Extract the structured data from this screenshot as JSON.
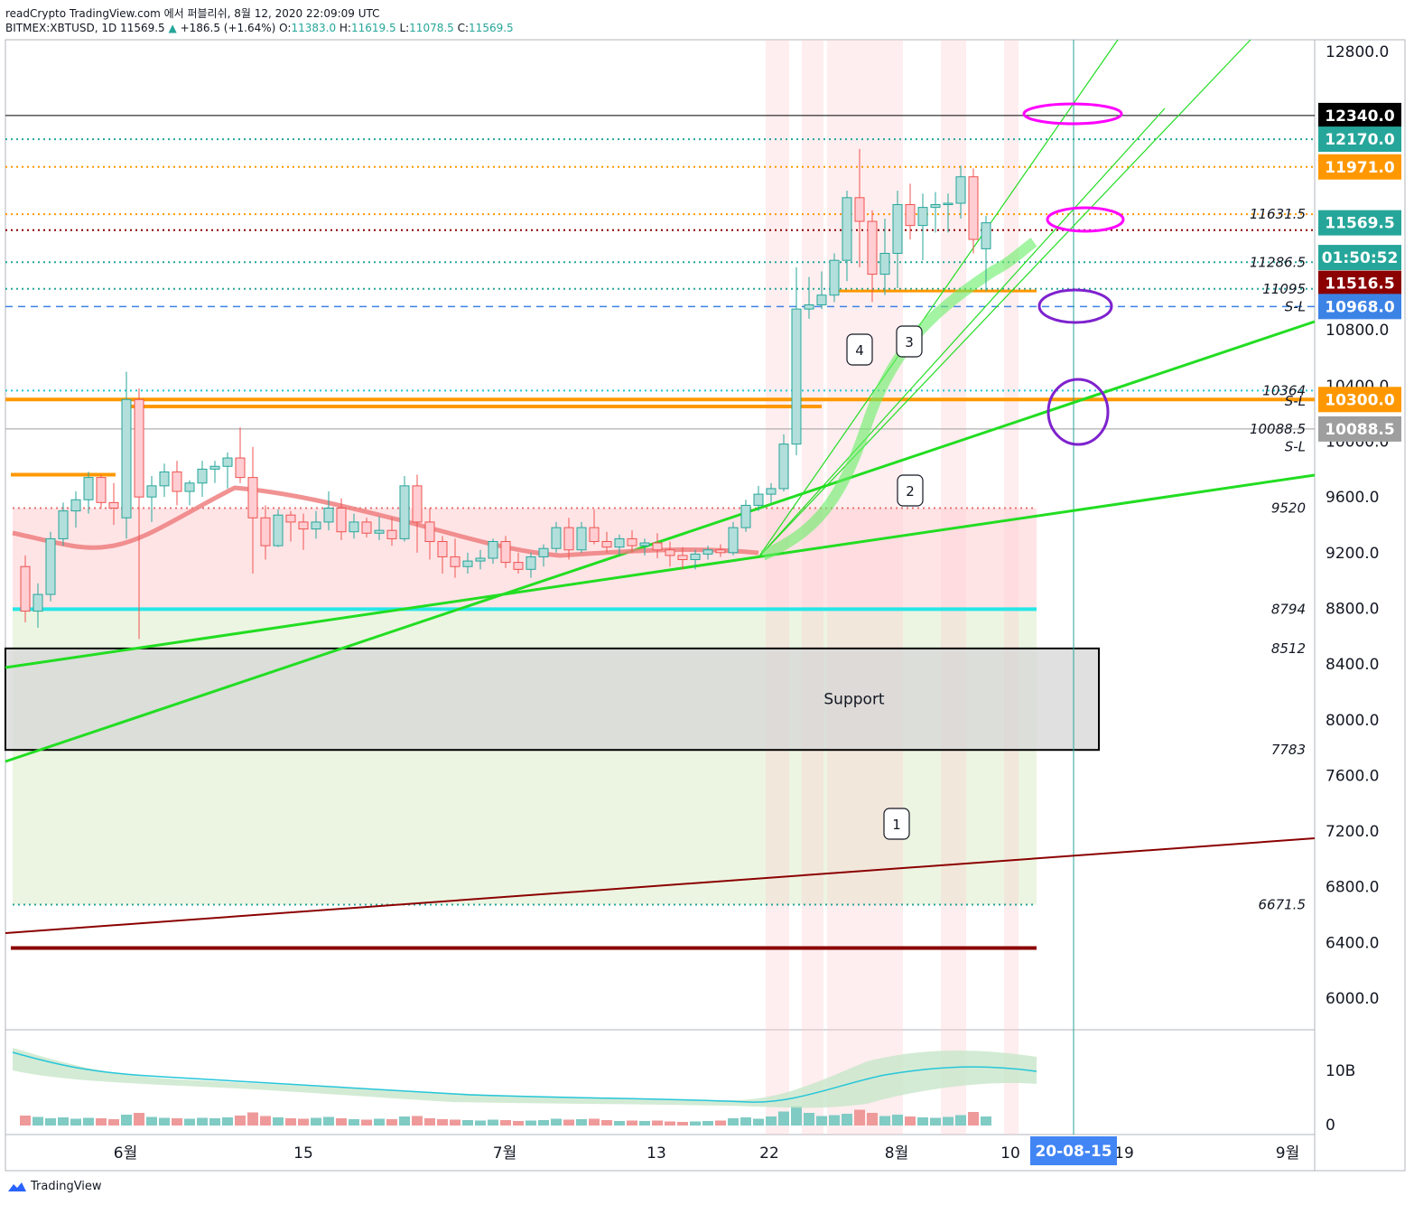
{
  "header": {
    "line1": "readCrypto TradingView.com 에서 퍼블리쉬, 8월 12, 2020 22:09:09 UTC",
    "symbol": "BITMEX:XBTUSD, 1D",
    "last": "11569.5",
    "change": "+186.5 (+1.64%)",
    "o_label": "O:",
    "o": "11383.0",
    "h_label": "H:",
    "h": "11619.5",
    "l_label": "L:",
    "l": "11078.5",
    "c_label": "C:",
    "c": "11569.5"
  },
  "brand": "TradingView",
  "chart_data": {
    "type": "candlestick",
    "title": "BITMEX:XBTUSD, 1D",
    "ylim": [
      5800,
      12900
    ],
    "y_ticks": [
      {
        "v": 12800,
        "label": "12800.0"
      },
      {
        "v": 10800,
        "label": "10800.0"
      },
      {
        "v": 10400,
        "label": "10400.0"
      },
      {
        "v": 10000,
        "label": "10000.0"
      },
      {
        "v": 9600,
        "label": "9600.0"
      },
      {
        "v": 9200,
        "label": "9200.0"
      },
      {
        "v": 8800,
        "label": "8800.0"
      },
      {
        "v": 8400,
        "label": "8400.0"
      },
      {
        "v": 8000,
        "label": "8000.0"
      },
      {
        "v": 7600,
        "label": "7600.0"
      },
      {
        "v": 7200,
        "label": "7200.0"
      },
      {
        "v": 6800,
        "label": "6800.0"
      },
      {
        "v": 6400,
        "label": "6400.0"
      },
      {
        "v": 6000,
        "label": "6000.0"
      }
    ],
    "x_labels": [
      {
        "i": 8,
        "label": "6월"
      },
      {
        "i": 22,
        "label": "15"
      },
      {
        "i": 38,
        "label": "7월"
      },
      {
        "i": 50,
        "label": "13"
      },
      {
        "i": 59,
        "label": "22"
      },
      {
        "i": 69,
        "label": "8월"
      },
      {
        "i": 78,
        "label": "10"
      },
      {
        "i": 87,
        "label": "19"
      },
      {
        "i": 101,
        "label": "9월"
      }
    ],
    "date_badge": {
      "i": 84,
      "label": "20-08-15"
    },
    "price_badges": [
      {
        "v": 12340,
        "label": "12340.0",
        "bg": "#000000"
      },
      {
        "v": 12170,
        "label": "12170.0",
        "bg": "#26a69a"
      },
      {
        "v": 11971,
        "label": "11971.0",
        "bg": "#ff9800"
      },
      {
        "v": 11569.5,
        "label": "11569.5",
        "bg": "#26a69a"
      },
      {
        "v": 11320,
        "label": "01:50:52",
        "bg": "#26a69a"
      },
      {
        "v": 11135,
        "label": "11516.5",
        "bg": "#8b0000"
      },
      {
        "v": 10968,
        "label": "10968.0",
        "bg": "#3c83e6"
      },
      {
        "v": 10300,
        "label": "10300.0",
        "bg": "#ff9800"
      },
      {
        "v": 10088.5,
        "label": "10088.5",
        "bg": "#9e9e9e"
      }
    ],
    "level_labels": [
      {
        "v": 11631.5,
        "label": "11631.5"
      },
      {
        "v": 11286.5,
        "label": "11286.5"
      },
      {
        "v": 11095,
        "label": "11095"
      },
      {
        "v": 10968,
        "label": "S-L"
      },
      {
        "v": 10364,
        "label": "10364"
      },
      {
        "v": 10290,
        "label": "S-L"
      },
      {
        "v": 10088.5,
        "label": "10088.5"
      },
      {
        "v": 9960,
        "label": "S-L"
      },
      {
        "v": 9520,
        "label": "9520"
      },
      {
        "v": 8794,
        "label": "8794"
      },
      {
        "v": 8512,
        "label": "8512"
      },
      {
        "v": 7783,
        "label": "7783"
      },
      {
        "v": 6671.5,
        "label": "6671.5"
      }
    ],
    "support_label": "Support",
    "callouts": [
      {
        "label": "1",
        "i": 70,
        "v": 6950
      },
      {
        "label": "2",
        "i": 71,
        "v": 9780
      },
      {
        "label": "3",
        "i": 71,
        "v": 10700
      },
      {
        "label": "4",
        "i": 66,
        "v": 10400
      }
    ],
    "indicator_ticks": [
      {
        "v": 10,
        "label": "10B"
      },
      {
        "v": 0,
        "label": "0"
      }
    ],
    "candles": [
      [
        9100,
        9180,
        8700,
        8780
      ],
      [
        8780,
        8980,
        8660,
        8900
      ],
      [
        8900,
        9350,
        8850,
        9300
      ],
      [
        9300,
        9560,
        9250,
        9500
      ],
      [
        9500,
        9640,
        9380,
        9580
      ],
      [
        9580,
        9780,
        9480,
        9740
      ],
      [
        9740,
        9760,
        9520,
        9560
      ],
      [
        9560,
        9700,
        9400,
        9520
      ],
      [
        9450,
        10500,
        9300,
        10300
      ],
      [
        10300,
        10380,
        8580,
        9600
      ],
      [
        9600,
        9750,
        9420,
        9680
      ],
      [
        9680,
        9840,
        9600,
        9780
      ],
      [
        9780,
        9860,
        9540,
        9640
      ],
      [
        9640,
        9720,
        9540,
        9700
      ],
      [
        9700,
        9860,
        9600,
        9800
      ],
      [
        9800,
        9860,
        9700,
        9820
      ],
      [
        9820,
        9920,
        9660,
        9880
      ],
      [
        9880,
        10100,
        9700,
        9740
      ],
      [
        9740,
        9960,
        9050,
        9450
      ],
      [
        9450,
        9540,
        9150,
        9250
      ],
      [
        9250,
        9510,
        9240,
        9470
      ],
      [
        9470,
        9500,
        9280,
        9420
      ],
      [
        9420,
        9480,
        9220,
        9370
      ],
      [
        9370,
        9500,
        9300,
        9420
      ],
      [
        9420,
        9640,
        9360,
        9520
      ],
      [
        9520,
        9590,
        9290,
        9350
      ],
      [
        9350,
        9480,
        9300,
        9420
      ],
      [
        9420,
        9450,
        9310,
        9340
      ],
      [
        9340,
        9460,
        9290,
        9360
      ],
      [
        9360,
        9450,
        9250,
        9300
      ],
      [
        9300,
        9750,
        9280,
        9680
      ],
      [
        9680,
        9760,
        9200,
        9420
      ],
      [
        9420,
        9520,
        9150,
        9280
      ],
      [
        9280,
        9320,
        9050,
        9170
      ],
      [
        9170,
        9300,
        9020,
        9100
      ],
      [
        9100,
        9200,
        9050,
        9140
      ],
      [
        9140,
        9220,
        9080,
        9160
      ],
      [
        9160,
        9300,
        9120,
        9280
      ],
      [
        9280,
        9320,
        9090,
        9130
      ],
      [
        9130,
        9200,
        9050,
        9080
      ],
      [
        9080,
        9200,
        9020,
        9170
      ],
      [
        9170,
        9260,
        9100,
        9230
      ],
      [
        9230,
        9420,
        9200,
        9380
      ],
      [
        9380,
        9450,
        9150,
        9220
      ],
      [
        9220,
        9420,
        9200,
        9380
      ],
      [
        9380,
        9510,
        9260,
        9280
      ],
      [
        9280,
        9350,
        9200,
        9240
      ],
      [
        9240,
        9330,
        9180,
        9300
      ],
      [
        9300,
        9360,
        9200,
        9250
      ],
      [
        9250,
        9300,
        9180,
        9270
      ],
      [
        9270,
        9340,
        9160,
        9220
      ],
      [
        9220,
        9280,
        9100,
        9180
      ],
      [
        9180,
        9240,
        9080,
        9150
      ],
      [
        9150,
        9220,
        9080,
        9190
      ],
      [
        9190,
        9250,
        9150,
        9220
      ],
      [
        9220,
        9260,
        9170,
        9200
      ],
      [
        9200,
        9420,
        9180,
        9380
      ],
      [
        9380,
        9580,
        9350,
        9540
      ],
      [
        9540,
        9680,
        9500,
        9620
      ],
      [
        9620,
        9700,
        9560,
        9660
      ],
      [
        9660,
        10050,
        9640,
        9980
      ],
      [
        9980,
        11250,
        9900,
        10950
      ],
      [
        10950,
        11180,
        10880,
        10980
      ],
      [
        10980,
        11220,
        10950,
        11050
      ],
      [
        11050,
        11350,
        11000,
        11300
      ],
      [
        11300,
        11800,
        11150,
        11750
      ],
      [
        11750,
        12100,
        11250,
        11580
      ],
      [
        11580,
        11660,
        11000,
        11200
      ],
      [
        11200,
        11600,
        11050,
        11350
      ],
      [
        11350,
        11800,
        11100,
        11700
      ],
      [
        11700,
        11850,
        11450,
        11550
      ],
      [
        11550,
        11780,
        11300,
        11680
      ],
      [
        11680,
        11790,
        11500,
        11700
      ],
      [
        11700,
        11780,
        11500,
        11710
      ],
      [
        11710,
        11980,
        11600,
        11900
      ],
      [
        11900,
        11960,
        11350,
        11450
      ],
      [
        11383,
        11619.5,
        11078.5,
        11569.5
      ]
    ],
    "volume": [
      2.2,
      1.9,
      1.6,
      1.8,
      1.5,
      1.7,
      1.6,
      1.4,
      2.4,
      2.8,
      1.9,
      1.7,
      1.6,
      1.5,
      1.7,
      1.6,
      1.8,
      2.2,
      2.9,
      2.1,
      1.8,
      1.6,
      1.5,
      1.7,
      1.9,
      1.6,
      1.4,
      1.3,
      1.5,
      1.4,
      2.0,
      2.1,
      1.6,
      1.4,
      1.3,
      1.2,
      1.1,
      1.3,
      1.2,
      1.0,
      1.1,
      1.2,
      1.5,
      1.3,
      1.4,
      1.5,
      1.2,
      1.0,
      1.1,
      1.0,
      1.1,
      0.9,
      0.8,
      0.9,
      1.0,
      1.1,
      1.6,
      1.8,
      1.5,
      2.0,
      3.1,
      4.3,
      2.8,
      2.1,
      2.3,
      2.6,
      3.5,
      2.8,
      2.1,
      2.4,
      2.0,
      1.8,
      1.7,
      1.9,
      2.3,
      3.0,
      2.0
    ]
  }
}
